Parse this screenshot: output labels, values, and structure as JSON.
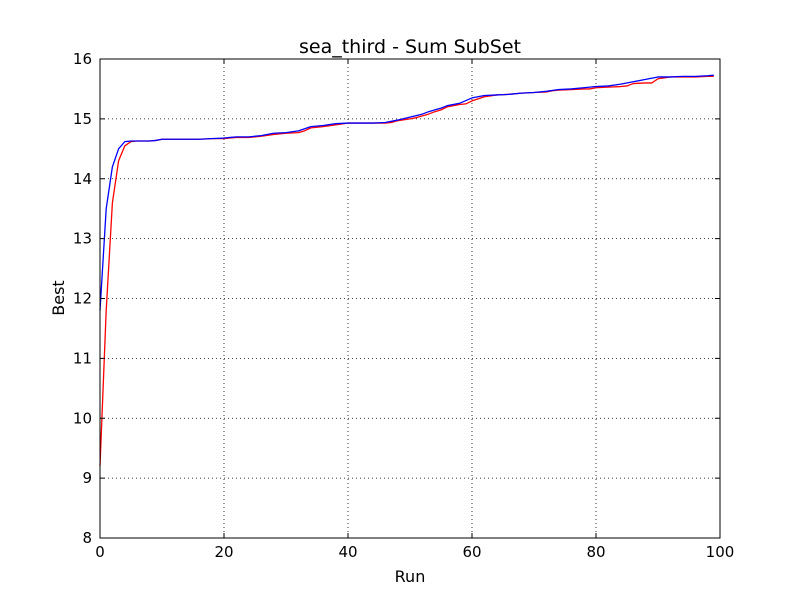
{
  "chart_data": {
    "type": "line",
    "title": "sea_third - Sum SubSet",
    "xlabel": "Run",
    "ylabel": "Best",
    "xlim": [
      0,
      100
    ],
    "ylim": [
      8,
      16
    ],
    "xticks": [
      0,
      20,
      40,
      60,
      80,
      100
    ],
    "yticks": [
      8,
      9,
      10,
      11,
      12,
      13,
      14,
      15,
      16
    ],
    "grid": true,
    "series": [
      {
        "color": "#ff0000",
        "x": [
          0,
          1,
          2,
          3,
          4,
          5,
          6,
          7,
          8,
          9,
          10,
          12,
          14,
          16,
          18,
          20,
          21,
          22,
          24,
          25,
          26,
          28,
          30,
          32,
          33,
          34,
          36,
          38,
          40,
          42,
          44,
          46,
          47,
          48,
          50,
          51,
          52,
          53,
          54,
          55,
          56,
          58,
          59,
          60,
          62,
          64,
          66,
          68,
          70,
          72,
          73,
          74,
          76,
          78,
          79,
          80,
          82,
          84,
          85,
          86,
          88,
          89,
          90,
          92,
          94,
          96,
          98,
          99
        ],
        "y": [
          9.2,
          11.8,
          13.6,
          14.3,
          14.55,
          14.62,
          14.63,
          14.63,
          14.63,
          14.64,
          14.66,
          14.66,
          14.66,
          14.66,
          14.67,
          14.67,
          14.68,
          14.69,
          14.69,
          14.7,
          14.71,
          14.74,
          14.76,
          14.77,
          14.8,
          14.85,
          14.87,
          14.9,
          14.93,
          14.93,
          14.93,
          14.93,
          14.94,
          14.97,
          15.0,
          15.02,
          15.05,
          15.08,
          15.12,
          15.15,
          15.2,
          15.24,
          15.25,
          15.3,
          15.37,
          15.4,
          15.41,
          15.43,
          15.44,
          15.45,
          15.47,
          15.48,
          15.49,
          15.5,
          15.5,
          15.52,
          15.53,
          15.54,
          15.55,
          15.59,
          15.6,
          15.6,
          15.67,
          15.7,
          15.7,
          15.7,
          15.71,
          15.71
        ]
      },
      {
        "color": "#0000ff",
        "x": [
          0,
          1,
          2,
          3,
          4,
          5,
          6,
          7,
          8,
          9,
          10,
          12,
          14,
          16,
          18,
          20,
          21,
          22,
          24,
          26,
          28,
          30,
          32,
          34,
          36,
          38,
          40,
          42,
          44,
          46,
          48,
          50,
          52,
          53,
          54,
          55,
          56,
          58,
          60,
          62,
          64,
          66,
          68,
          70,
          72,
          74,
          76,
          78,
          80,
          82,
          84,
          86,
          88,
          90,
          92,
          94,
          96,
          98,
          99
        ],
        "y": [
          11.8,
          13.5,
          14.2,
          14.5,
          14.62,
          14.63,
          14.63,
          14.63,
          14.63,
          14.64,
          14.66,
          14.66,
          14.66,
          14.66,
          14.67,
          14.68,
          14.69,
          14.7,
          14.7,
          14.72,
          14.76,
          14.77,
          14.8,
          14.87,
          14.89,
          14.92,
          14.93,
          14.93,
          14.93,
          14.94,
          14.98,
          15.03,
          15.08,
          15.12,
          15.15,
          15.18,
          15.22,
          15.26,
          15.35,
          15.39,
          15.4,
          15.41,
          15.43,
          15.44,
          15.46,
          15.49,
          15.5,
          15.52,
          15.54,
          15.55,
          15.58,
          15.62,
          15.66,
          15.7,
          15.7,
          15.71,
          15.71,
          15.72,
          15.73
        ]
      }
    ]
  }
}
